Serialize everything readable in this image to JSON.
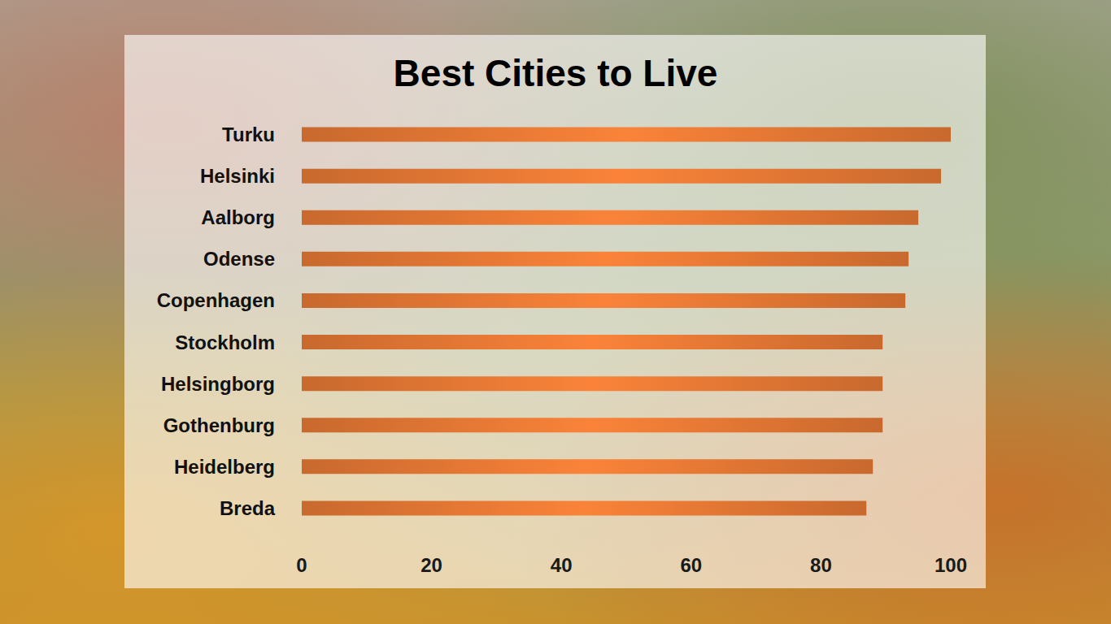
{
  "chart_data": {
    "type": "bar",
    "title": "Best Cities to Live",
    "orientation": "horizontal",
    "categories": [
      "Turku",
      "Helsinki",
      "Aalborg",
      "Odense",
      "Copenhagen",
      "Stockholm",
      "Helsingborg",
      "Gothenburg",
      "Heidelberg",
      "Breda"
    ],
    "values": [
      100,
      98.5,
      95,
      93.5,
      93,
      89.5,
      89.5,
      89.5,
      88,
      87
    ],
    "color": "#c8692e",
    "xlim": [
      0,
      100
    ],
    "xticks": [
      0,
      20,
      40,
      60,
      80,
      100
    ],
    "grid": false
  }
}
